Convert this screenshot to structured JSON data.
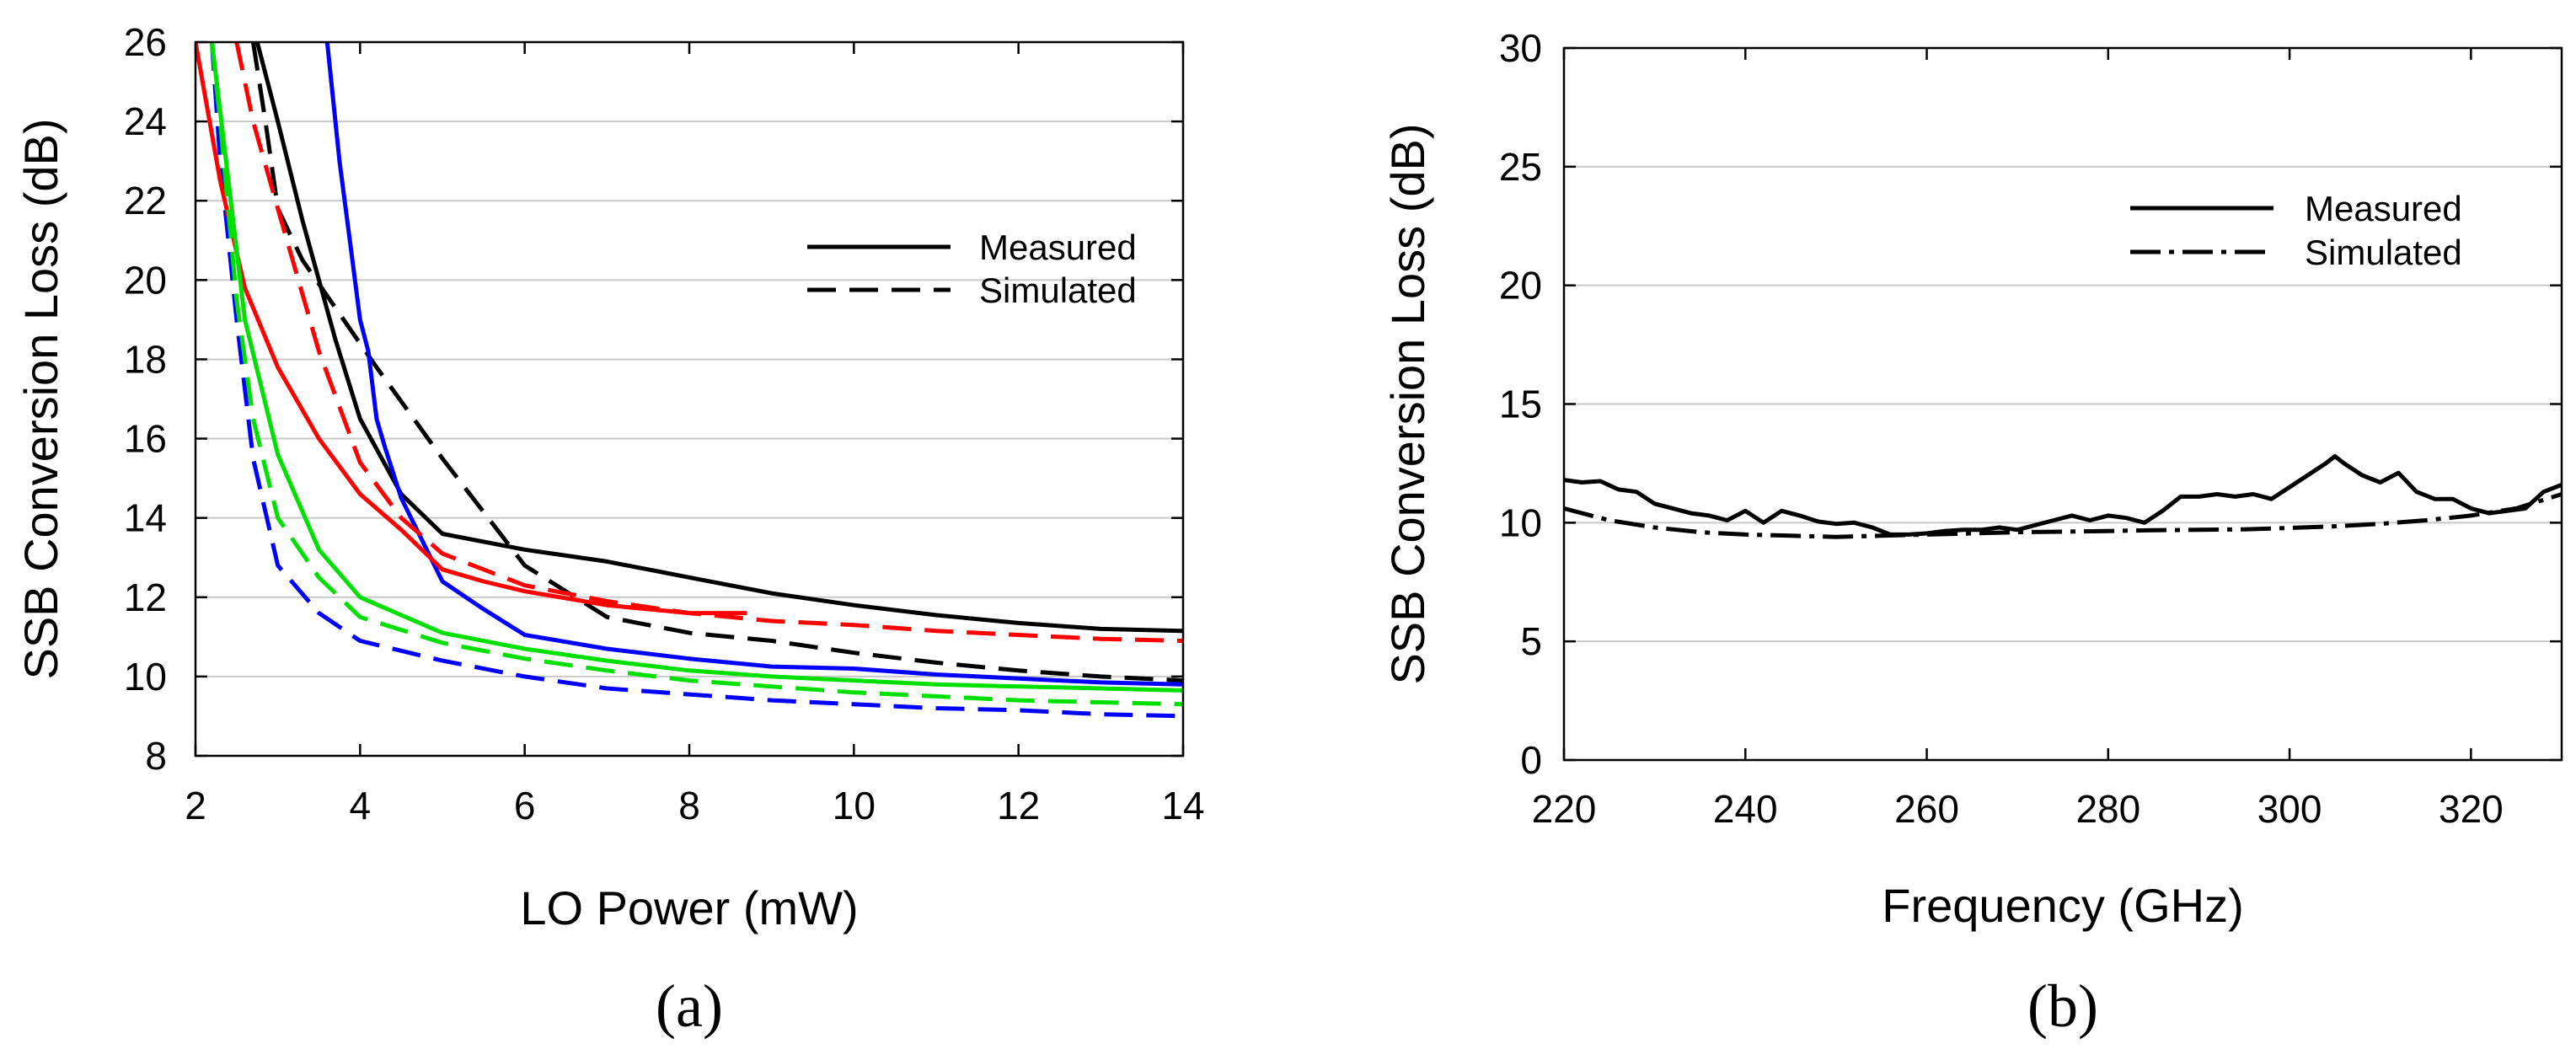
{
  "chart_data": [
    {
      "type": "line",
      "panel_label": "(a)",
      "xlabel": "LO Power (mW)",
      "ylabel": "SSB Conversion Loss (dB)",
      "xlim": [
        2,
        14
      ],
      "ylim": [
        8,
        26
      ],
      "xticks": [
        "2",
        "4",
        "6",
        "8",
        "10",
        "12",
        "14"
      ],
      "yticks": [
        "8",
        "10",
        "12",
        "14",
        "16",
        "18",
        "20",
        "22",
        "24",
        "26"
      ],
      "grid": "horizontal",
      "legend": {
        "position": "upper-right",
        "entries": [
          {
            "label": "Measured",
            "style": "solid"
          },
          {
            "label": "Simulated",
            "style": "dashed"
          }
        ]
      },
      "series": [
        {
          "name": "Measured (black)",
          "color": "#000000",
          "style": "solid",
          "x": [
            2.75,
            3.0,
            3.3,
            3.7,
            4.0,
            4.5,
            5.0,
            6.0,
            7.0,
            8.0,
            9.0,
            10.0,
            11.0,
            12.0,
            13.0,
            14.0
          ],
          "y": [
            26.0,
            24.0,
            21.5,
            18.5,
            16.5,
            14.6,
            13.6,
            13.2,
            12.9,
            12.5,
            12.1,
            11.8,
            11.55,
            11.35,
            11.2,
            11.15
          ]
        },
        {
          "name": "Simulated (black)",
          "color": "#000000",
          "style": "dashed",
          "x": [
            2.7,
            2.85,
            3.0,
            3.3,
            3.7,
            4.2,
            5.0,
            6.0,
            7.0,
            8.0,
            9.0,
            10.0,
            11.0,
            12.0,
            13.0,
            14.0
          ],
          "y": [
            26.0,
            24.0,
            21.8,
            20.5,
            19.3,
            17.8,
            15.5,
            12.8,
            11.5,
            11.1,
            10.9,
            10.6,
            10.35,
            10.15,
            10.0,
            9.9
          ]
        },
        {
          "name": "Measured (blue)",
          "color": "#0000ff",
          "style": "solid",
          "x": [
            3.6,
            3.75,
            3.9,
            4.0,
            4.1,
            4.2,
            4.3,
            4.5,
            5.0,
            5.5,
            6.0,
            7.0,
            8.0,
            9.0,
            10.0,
            11.0,
            12.0,
            13.0,
            14.0
          ],
          "y": [
            26.0,
            23.0,
            20.6,
            19.0,
            18.2,
            16.5,
            15.8,
            14.5,
            12.4,
            11.7,
            11.05,
            10.7,
            10.45,
            10.25,
            10.2,
            10.05,
            9.95,
            9.85,
            9.8
          ]
        },
        {
          "name": "Simulated (blue)",
          "color": "#0000ff",
          "style": "dashed",
          "x": [
            2.2,
            2.3,
            2.5,
            2.7,
            3.0,
            3.5,
            4.0,
            5.0,
            6.0,
            7.0,
            8.0,
            9.0,
            10.0,
            11.0,
            12.0,
            13.0,
            14.0
          ],
          "y": [
            26.0,
            23.0,
            19.0,
            15.5,
            12.8,
            11.6,
            10.9,
            10.4,
            10.0,
            9.7,
            9.55,
            9.4,
            9.3,
            9.2,
            9.15,
            9.05,
            9.0
          ]
        },
        {
          "name": "Measured (red)",
          "color": "#ff0000",
          "style": "solid",
          "x": [
            2.0,
            2.3,
            2.6,
            3.0,
            3.5,
            4.0,
            4.5,
            5.0,
            5.5,
            6.0,
            7.0,
            8.0,
            8.7
          ],
          "y": [
            26.0,
            22.5,
            19.8,
            17.8,
            16.0,
            14.6,
            13.7,
            12.7,
            12.4,
            12.15,
            11.8,
            11.6,
            11.6
          ]
        },
        {
          "name": "Simulated (red)",
          "color": "#ff0000",
          "style": "dashed",
          "x": [
            2.5,
            2.7,
            3.0,
            3.5,
            4.0,
            4.5,
            5.0,
            6.0,
            7.0,
            8.0,
            9.0,
            10.0,
            11.0,
            12.0,
            13.0,
            14.0
          ],
          "y": [
            26.0,
            24.0,
            21.8,
            18.2,
            15.4,
            14.0,
            13.1,
            12.3,
            11.9,
            11.6,
            11.4,
            11.3,
            11.15,
            11.05,
            10.95,
            10.9
          ]
        },
        {
          "name": "Measured (green)",
          "color": "#00e000",
          "style": "solid",
          "x": [
            2.2,
            2.4,
            2.6,
            3.0,
            3.5,
            4.0,
            5.0,
            6.0,
            7.0,
            8.0,
            9.0,
            10.0,
            11.0,
            12.0,
            13.0,
            14.0
          ],
          "y": [
            26.0,
            22.5,
            19.0,
            15.6,
            13.2,
            12.0,
            11.1,
            10.7,
            10.4,
            10.15,
            10.0,
            9.9,
            9.8,
            9.75,
            9.7,
            9.65
          ]
        },
        {
          "name": "Simulated (green)",
          "color": "#00e000",
          "style": "dashed",
          "x": [
            2.2,
            2.3,
            2.5,
            2.7,
            3.0,
            3.5,
            4.0,
            5.0,
            6.0,
            7.0,
            8.0,
            9.0,
            10.0,
            11.0,
            12.0,
            13.0,
            14.0
          ],
          "y": [
            26.0,
            24.0,
            19.5,
            16.5,
            14.0,
            12.5,
            11.5,
            10.85,
            10.45,
            10.15,
            9.9,
            9.75,
            9.6,
            9.5,
            9.4,
            9.35,
            9.3
          ]
        }
      ]
    },
    {
      "type": "line",
      "panel_label": "(b)",
      "xlabel": "Frequency (GHz)",
      "ylabel": "SSB Conversion Loss (dB)",
      "xlim": [
        220,
        330
      ],
      "ylim": [
        0,
        30
      ],
      "xticks": [
        "220",
        "240",
        "260",
        "280",
        "300",
        "320"
      ],
      "yticks": [
        "0",
        "5",
        "10",
        "15",
        "20",
        "25",
        "30"
      ],
      "grid": "horizontal",
      "legend": {
        "position": "upper-right",
        "entries": [
          {
            "label": "Measured",
            "style": "solid"
          },
          {
            "label": "Simulated",
            "style": "dash-dot"
          }
        ]
      },
      "series": [
        {
          "name": "Measured",
          "color": "#000000",
          "style": "solid",
          "x": [
            220,
            222,
            224,
            226,
            228,
            230,
            232,
            234,
            236,
            238,
            240,
            242,
            244,
            246,
            248,
            250,
            252,
            254,
            256,
            258,
            260,
            262,
            264,
            266,
            268,
            270,
            272,
            274,
            276,
            278,
            280,
            282,
            284,
            286,
            288,
            290,
            292,
            294,
            296,
            298,
            300,
            302,
            304,
            305,
            306,
            308,
            310,
            312,
            314,
            316,
            318,
            320,
            322,
            324,
            326,
            328,
            330
          ],
          "y": [
            11.8,
            11.7,
            11.75,
            11.4,
            11.3,
            10.8,
            10.6,
            10.4,
            10.3,
            10.1,
            10.5,
            10.0,
            10.5,
            10.3,
            10.05,
            9.95,
            10.0,
            9.8,
            9.5,
            9.5,
            9.55,
            9.65,
            9.7,
            9.7,
            9.8,
            9.7,
            9.9,
            10.1,
            10.3,
            10.1,
            10.3,
            10.2,
            10.0,
            10.5,
            11.1,
            11.1,
            11.2,
            11.1,
            11.2,
            11.0,
            11.5,
            12.0,
            12.5,
            12.8,
            12.5,
            12.0,
            11.7,
            12.1,
            11.3,
            11.0,
            11.0,
            10.6,
            10.4,
            10.5,
            10.6,
            11.3,
            11.6
          ]
        },
        {
          "name": "Simulated",
          "color": "#000000",
          "style": "dash-dot",
          "x": [
            220,
            225,
            230,
            235,
            240,
            245,
            250,
            255,
            260,
            265,
            270,
            275,
            280,
            285,
            290,
            295,
            300,
            305,
            310,
            315,
            320,
            325,
            330
          ],
          "y": [
            10.6,
            10.1,
            9.8,
            9.6,
            9.5,
            9.45,
            9.4,
            9.45,
            9.5,
            9.55,
            9.6,
            9.62,
            9.65,
            9.68,
            9.7,
            9.72,
            9.78,
            9.85,
            9.95,
            10.1,
            10.3,
            10.6,
            11.2
          ]
        }
      ]
    }
  ]
}
